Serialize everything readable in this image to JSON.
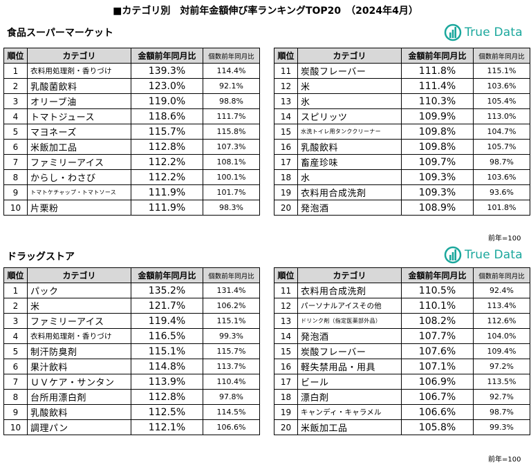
{
  "title": "■カテゴリ別　対前年金額伸び率ランキングTOP20　（2024年4月）",
  "logo_text": "True Data",
  "brand_color": "#1aa79c",
  "header_bg": "#d8d8d8",
  "headers": {
    "rank": "順位",
    "category": "カテゴリ",
    "amount": "金額前年同月比",
    "count": "個数前年同月比"
  },
  "note": "前年=100",
  "sections": [
    {
      "name": "食品スーパーマーケット",
      "left": [
        {
          "rank": "1",
          "category": "衣料用処理剤・香りづけ",
          "amount": "139.3%",
          "count": "114.4%"
        },
        {
          "rank": "2",
          "category": "乳酸菌飲料",
          "amount": "123.0%",
          "count": "92.1%"
        },
        {
          "rank": "3",
          "category": "オリーブ油",
          "amount": "119.0%",
          "count": "98.8%"
        },
        {
          "rank": "4",
          "category": "トマトジュース",
          "amount": "118.6%",
          "count": "111.7%"
        },
        {
          "rank": "5",
          "category": "マヨネーズ",
          "amount": "115.7%",
          "count": "115.8%"
        },
        {
          "rank": "6",
          "category": "米飯加工品",
          "amount": "112.8%",
          "count": "107.3%"
        },
        {
          "rank": "7",
          "category": "ファミリーアイス",
          "amount": "112.2%",
          "count": "108.1%"
        },
        {
          "rank": "8",
          "category": "からし・わさび",
          "amount": "112.2%",
          "count": "100.1%"
        },
        {
          "rank": "9",
          "category": "トマトケチャップ・トマトソース",
          "amount": "111.9%",
          "count": "101.7%"
        },
        {
          "rank": "10",
          "category": "片栗粉",
          "amount": "111.9%",
          "count": "98.3%"
        }
      ],
      "right": [
        {
          "rank": "11",
          "category": "炭酸フレーバー",
          "amount": "111.8%",
          "count": "115.1%"
        },
        {
          "rank": "12",
          "category": "米",
          "amount": "111.4%",
          "count": "103.6%"
        },
        {
          "rank": "13",
          "category": "氷",
          "amount": "110.3%",
          "count": "105.4%"
        },
        {
          "rank": "14",
          "category": "スピリッツ",
          "amount": "109.9%",
          "count": "113.0%"
        },
        {
          "rank": "15",
          "category": "水洗トイレ用タンククリーナー",
          "amount": "109.8%",
          "count": "104.7%"
        },
        {
          "rank": "16",
          "category": "乳酸飲料",
          "amount": "109.8%",
          "count": "105.7%"
        },
        {
          "rank": "17",
          "category": "畜産珍味",
          "amount": "109.7%",
          "count": "98.7%"
        },
        {
          "rank": "18",
          "category": "水",
          "amount": "109.3%",
          "count": "103.6%"
        },
        {
          "rank": "19",
          "category": "衣料用合成洗剤",
          "amount": "109.3%",
          "count": "93.6%"
        },
        {
          "rank": "20",
          "category": "発泡酒",
          "amount": "108.9%",
          "count": "101.8%"
        }
      ]
    },
    {
      "name": "ドラッグストア",
      "left": [
        {
          "rank": "1",
          "category": "パック",
          "amount": "135.2%",
          "count": "131.4%"
        },
        {
          "rank": "2",
          "category": "米",
          "amount": "121.7%",
          "count": "106.2%"
        },
        {
          "rank": "3",
          "category": "ファミリーアイス",
          "amount": "119.4%",
          "count": "115.1%"
        },
        {
          "rank": "4",
          "category": "衣料用処理剤・香りづけ",
          "amount": "116.5%",
          "count": "99.3%"
        },
        {
          "rank": "5",
          "category": "制汗防臭剤",
          "amount": "115.1%",
          "count": "115.7%"
        },
        {
          "rank": "6",
          "category": "果汁飲料",
          "amount": "114.8%",
          "count": "113.7%"
        },
        {
          "rank": "7",
          "category": "ＵＶケア・サンタン",
          "amount": "113.9%",
          "count": "110.4%"
        },
        {
          "rank": "8",
          "category": "台所用漂白剤",
          "amount": "112.8%",
          "count": "97.8%"
        },
        {
          "rank": "9",
          "category": "乳酸飲料",
          "amount": "112.5%",
          "count": "114.5%"
        },
        {
          "rank": "10",
          "category": "調理パン",
          "amount": "112.1%",
          "count": "106.6%"
        }
      ],
      "right": [
        {
          "rank": "11",
          "category": "衣料用合成洗剤",
          "amount": "110.5%",
          "count": "92.4%"
        },
        {
          "rank": "12",
          "category": "パーソナルアイスその他",
          "amount": "110.1%",
          "count": "113.4%"
        },
        {
          "rank": "13",
          "category": "ドリンク剤（指定医薬部外品）",
          "amount": "108.2%",
          "count": "112.6%"
        },
        {
          "rank": "14",
          "category": "発泡酒",
          "amount": "107.7%",
          "count": "104.0%"
        },
        {
          "rank": "15",
          "category": "炭酸フレーバー",
          "amount": "107.6%",
          "count": "109.4%"
        },
        {
          "rank": "16",
          "category": "軽失禁用品・用具",
          "amount": "107.1%",
          "count": "97.2%"
        },
        {
          "rank": "17",
          "category": "ビール",
          "amount": "106.9%",
          "count": "113.5%"
        },
        {
          "rank": "18",
          "category": "漂白剤",
          "amount": "106.7%",
          "count": "92.7%"
        },
        {
          "rank": "19",
          "category": "キャンディ・キャラメル",
          "amount": "106.6%",
          "count": "98.7%"
        },
        {
          "rank": "20",
          "category": "米飯加工品",
          "amount": "105.8%",
          "count": "99.3%"
        }
      ]
    }
  ]
}
